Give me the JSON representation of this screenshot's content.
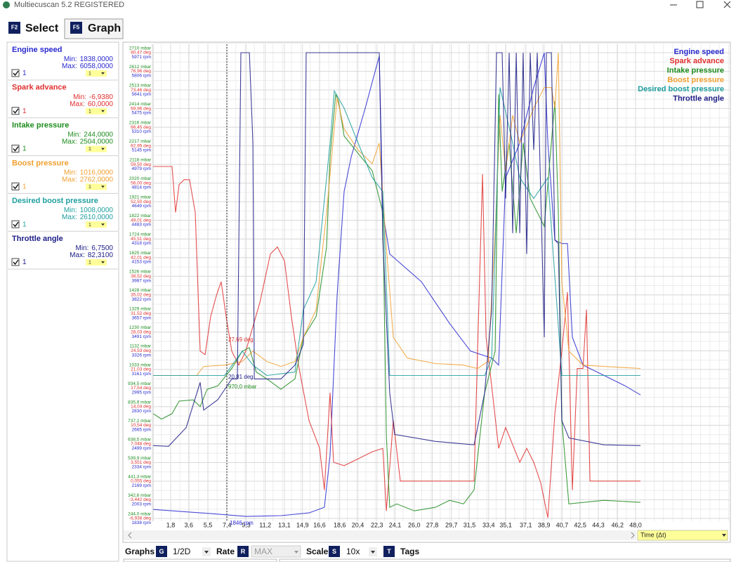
{
  "window": {
    "title": "Multiecuscan 5.2 REGISTERED"
  },
  "tabs": [
    {
      "key": "F2",
      "label": "Select"
    },
    {
      "key": "F5",
      "label": "Graph"
    }
  ],
  "captions": {
    "min": "Min:",
    "max": "Max:"
  },
  "channels": [
    {
      "name": "Engine speed",
      "color": "#2a2ad0",
      "min": {
        "value": 1838,
        "label": "1838,0000"
      },
      "max": {
        "value": 6058,
        "label": "6058,0000"
      },
      "enabled": "1",
      "scale": "1",
      "axis": 2,
      "t": [
        0.06,
        5.78,
        9.27,
        12.76,
        15.55,
        17.08,
        17.64,
        18.34,
        19.04,
        19.74,
        21.13,
        22.53,
        22.88,
        23.57,
        26.72,
        29.51,
        31.6,
        33.7,
        34.39,
        35.09,
        36.49,
        37.88,
        38.93,
        39.28,
        39.98,
        40.67,
        41.23,
        41.72,
        42.77,
        44.86,
        46.95,
        48.49
      ],
      "values": [
        1918,
        1881,
        1856,
        1863,
        1887,
        1937,
        2399,
        3815,
        4739,
        5047,
        5478,
        5940,
        4554,
        4185,
        3938,
        3569,
        3323,
        3261,
        3199,
        4862,
        5170,
        5663,
        5971,
        5170,
        4308,
        4277,
        4277,
        3446,
        3199,
        3107,
        3015,
        2934
      ]
    },
    {
      "name": "Spark advance",
      "color": "#e03030",
      "min": {
        "value": -6.938,
        "label": "-6,9380"
      },
      "max": {
        "value": 60,
        "label": "60,0000"
      },
      "enabled": "1",
      "scale": "1",
      "axis": 1,
      "t": [
        0.06,
        1.94,
        2.29,
        2.64,
        3.13,
        3.68,
        4.24,
        4.73,
        5.22,
        5.78,
        6.34,
        6.82,
        7.31,
        7.87,
        8.57,
        9.27,
        10.66,
        11.71,
        12.41,
        13.11,
        13.8,
        14.5,
        15.55,
        16.6,
        17.08,
        17.64,
        17.99,
        19.04,
        20.43,
        21.83,
        22.88,
        23.23,
        23.92,
        24.62,
        31.95,
        32.3,
        32.79,
        33.14,
        33.7,
        34.39,
        35.09,
        36.49,
        37.18,
        37.88,
        38.58,
        39.28,
        39.98,
        40.67,
        41.23,
        41.72,
        42.21,
        42.77,
        43.12,
        43.47,
        48.49
      ],
      "values": [
        59.11,
        59.11,
        50.51,
        55.72,
        56.63,
        56.63,
        50.51,
        24.46,
        23.81,
        30.97,
        34.88,
        37.48,
        30.97,
        24.46,
        21.85,
        24.46,
        33.58,
        42.7,
        44.0,
        41.39,
        30.97,
        21.85,
        11.43,
        6.22,
        -1.6,
        16.64,
        3.61,
        2.96,
        4.26,
        5.57,
        6.22,
        -5.51,
        11.43,
        0.07,
        0.07,
        24.46,
        57.67,
        27.06,
        17.94,
        6.22,
        10.13,
        3.61,
        6.22,
        3.61,
        -0.29,
        -6.81,
        12.73,
        24.46,
        35.53,
        -1.6,
        21.2,
        21.2,
        32.27,
        0.07,
        0.07
      ]
    },
    {
      "name": "Intake pressure",
      "color": "#1e8c1e",
      "min": {
        "value": 244,
        "label": "244,0000"
      },
      "max": {
        "value": 2504,
        "label": "2504,0000"
      },
      "enabled": "1",
      "scale": "1",
      "axis": 0,
      "t": [
        0.06,
        0.89,
        1.94,
        2.64,
        4.03,
        4.73,
        5.43,
        6.48,
        7.87,
        8.92,
        9.62,
        10.31,
        11.36,
        12.76,
        14.15,
        14.99,
        16.25,
        17.29,
        17.64,
        18.2,
        18.48,
        19.04,
        20.43,
        21.83,
        22.88,
        23.23,
        23.57,
        24.27,
        26.02,
        28.11,
        29.51,
        30.9,
        31.95,
        33.0,
        34.04,
        34.39,
        34.74,
        35.44,
        36.14,
        36.83,
        37.53,
        38.23,
        38.93,
        39.98,
        40.32,
        40.67,
        41.37,
        44.86,
        48.49
      ],
      "values": [
        799,
        770,
        799,
        865,
        872,
        836,
        928,
        946,
        1038,
        1130,
        1148,
        1019,
        983,
        928,
        983,
        1203,
        1313,
        1681,
        2159,
        2490,
        2453,
        2269,
        2177,
        2085,
        1865,
        689,
        303,
        321,
        284,
        303,
        340,
        321,
        395,
        909,
        1130,
        2490,
        1975,
        2232,
        1754,
        2232,
        1938,
        1865,
        1791,
        2453,
        1865,
        763,
        321,
        340,
        329
      ]
    },
    {
      "name": "Boost pressure",
      "color": "#f0a030",
      "min": {
        "value": 1016,
        "label": "1016,0000"
      },
      "max": {
        "value": 2762,
        "label": "2762,0000"
      },
      "enabled": "1",
      "scale": "1",
      "axis": 0,
      "t": [
        0.06,
        4.38,
        5.08,
        7.17,
        8.92,
        9.97,
        11.36,
        12.76,
        14.15,
        14.99,
        16.25,
        17.29,
        18.34,
        19.04,
        20.43,
        21.83,
        22.53,
        23.23,
        23.92,
        25.32,
        28.11,
        30.9,
        32.3,
        33.35,
        34.04,
        34.53,
        35.09,
        35.79,
        36.49,
        37.88,
        38.93,
        39.63,
        39.98,
        40.32,
        40.67,
        41.37,
        42.77,
        44.86,
        48.49
      ],
      "values": [
        1001,
        1001,
        1049,
        1056,
        1075,
        1130,
        1075,
        1049,
        1075,
        1203,
        1350,
        1865,
        2471,
        2306,
        2195,
        2122,
        2232,
        1681,
        1203,
        1093,
        1064,
        1056,
        1038,
        1075,
        1754,
        2379,
        2085,
        2379,
        2232,
        2416,
        2526,
        2526,
        2416,
        2710,
        1497,
        1130,
        1056,
        1049,
        1038
      ]
    },
    {
      "name": "Desired boost pressure",
      "color": "#1f9e9e",
      "min": {
        "value": 1008,
        "label": "1008,0000"
      },
      "max": {
        "value": 2610,
        "label": "2610,0000"
      },
      "enabled": "1",
      "scale": "1",
      "axis": 0,
      "t": [
        0.06,
        7.17,
        8.92,
        9.97,
        11.36,
        14.15,
        14.99,
        16.25,
        17.64,
        18.06,
        19.04,
        20.43,
        21.83,
        22.88,
        23.57,
        33.0,
        33.7,
        34.53,
        35.79,
        36.49,
        37.88,
        39.28,
        40.67,
        48.49
      ],
      "values": [
        1001,
        1001,
        1130,
        1056,
        1001,
        1019,
        1350,
        1497,
        2232,
        2508,
        2416,
        2232,
        2048,
        1975,
        1001,
        1001,
        1093,
        2526,
        2232,
        2048,
        1938,
        2048,
        1001,
        1001
      ]
    },
    {
      "name": "Throttle angle",
      "color": "#1c1c86",
      "min": {
        "value": 6.75,
        "label": "6,7500"
      },
      "max": {
        "value": 82.31,
        "label": "82,3100"
      },
      "enabled": "1",
      "scale": "1",
      "axis": null,
      "t": [
        0.06,
        1.59,
        3.34,
        4.73,
        5.08,
        6.48,
        7.87,
        8.43,
        8.78,
        9.62,
        9.97,
        10.11,
        12.76,
        14.15,
        14.99,
        15.27,
        22.53,
        22.88,
        23.57,
        24.06,
        28.11,
        31.95,
        33.0,
        33.7,
        34.18,
        34.74,
        35.09,
        35.44,
        35.79,
        36.14,
        36.49,
        36.83,
        37.18,
        37.53,
        37.88,
        38.23,
        38.93,
        39.14,
        39.63,
        39.98,
        40.32,
        40.67,
        41.37,
        44.86,
        48.49
      ],
      "values": [
        18.57,
        18.46,
        21.5,
        28.82,
        24.32,
        26.01,
        29.38,
        29.38,
        82.31,
        82.31,
        67.67,
        29.38,
        29.38,
        31.64,
        35.02,
        82.31,
        82.31,
        51.91,
        27.13,
        20.38,
        19.25,
        18.69,
        27.13,
        40.65,
        82.31,
        82.31,
        58.66,
        82.31,
        53.03,
        82.31,
        53.03,
        82.31,
        49.65,
        82.31,
        66.55,
        82.31,
        36.14,
        82.31,
        82.31,
        51.91,
        51.34,
        22.63,
        19.81,
        18.69,
        18.57
      ]
    }
  ],
  "y_rows": [
    [
      {
        "value": 2710,
        "label": "2710 mbar"
      },
      {
        "value": 80.47,
        "label": "80,47 deg"
      },
      {
        "value": 5971,
        "label": "5971 rpm"
      }
    ],
    [
      {
        "value": 2612,
        "label": "2612 mbar"
      },
      {
        "value": 76.96,
        "label": "76,96 deg"
      },
      {
        "value": 5806,
        "label": "5806 rpm"
      }
    ],
    [
      {
        "value": 2513,
        "label": "2513 mbar"
      },
      {
        "value": 73.46,
        "label": "73,46 deg"
      },
      {
        "value": 5641,
        "label": "5641 rpm"
      }
    ],
    [
      {
        "value": 2414,
        "label": "2414 mbar"
      },
      {
        "value": 69.96,
        "label": "69,96 deg"
      },
      {
        "value": 5475,
        "label": "5475 rpm"
      }
    ],
    [
      {
        "value": 2316,
        "label": "2316 mbar"
      },
      {
        "value": 66.45,
        "label": "66,45 deg"
      },
      {
        "value": 5310,
        "label": "5310 rpm"
      }
    ],
    [
      {
        "value": 2217,
        "label": "2217 mbar"
      },
      {
        "value": 62.95,
        "label": "62,95 deg"
      },
      {
        "value": 5145,
        "label": "5145 rpm"
      }
    ],
    [
      {
        "value": 2118,
        "label": "2118 mbar"
      },
      {
        "value": 59.5,
        "label": "59,50 deg"
      },
      {
        "value": 4979,
        "label": "4979 rpm"
      }
    ],
    [
      {
        "value": 2020,
        "label": "2020 mbar"
      },
      {
        "value": 56,
        "label": "56,00 deg"
      },
      {
        "value": 4814,
        "label": "4814 rpm"
      }
    ],
    [
      {
        "value": 1921,
        "label": "1921 mbar"
      },
      {
        "value": 52.5,
        "label": "52,50 deg"
      },
      {
        "value": 4649,
        "label": "4649 rpm"
      }
    ],
    [
      {
        "value": 1822,
        "label": "1822 mbar"
      },
      {
        "value": 49.01,
        "label": "49,01 deg"
      },
      {
        "value": 4483,
        "label": "4483 rpm"
      }
    ],
    [
      {
        "value": 1724,
        "label": "1724 mbar"
      },
      {
        "value": 45.51,
        "label": "45,51 deg"
      },
      {
        "value": 4318,
        "label": "4318 rpm"
      }
    ],
    [
      {
        "value": 1625,
        "label": "1625 mbar"
      },
      {
        "value": 42.01,
        "label": "42,01 deg"
      },
      {
        "value": 4153,
        "label": "4153 rpm"
      }
    ],
    [
      {
        "value": 1526,
        "label": "1526 mbar"
      },
      {
        "value": 38.52,
        "label": "38,52 deg"
      },
      {
        "value": 3987,
        "label": "3987 rpm"
      }
    ],
    [
      {
        "value": 1428,
        "label": "1428 mbar"
      },
      {
        "value": 35.02,
        "label": "35,02 deg"
      },
      {
        "value": 3822,
        "label": "3822 rpm"
      }
    ],
    [
      {
        "value": 1329,
        "label": "1329 mbar"
      },
      {
        "value": 31.52,
        "label": "31,52 deg"
      },
      {
        "value": 3657,
        "label": "3657 rpm"
      }
    ],
    [
      {
        "value": 1230,
        "label": "1230 mbar"
      },
      {
        "value": 28.03,
        "label": "28,03 deg"
      },
      {
        "value": 3491,
        "label": "3491 rpm"
      }
    ],
    [
      {
        "value": 1132,
        "label": "1132 mbar"
      },
      {
        "value": 24.53,
        "label": "24,53 deg"
      },
      {
        "value": 3326,
        "label": "3326 rpm"
      }
    ],
    [
      {
        "value": 1033,
        "label": "1033 mbar"
      },
      {
        "value": 21.03,
        "label": "21,03 deg"
      },
      {
        "value": 3161,
        "label": "3161 rpm"
      }
    ],
    [
      {
        "value": 934.5,
        "label": "934,5 mbar"
      },
      {
        "value": 17.54,
        "label": "17,54 deg"
      },
      {
        "value": 2995,
        "label": "2995 rpm"
      }
    ],
    [
      {
        "value": 835.9,
        "label": "835,9 mbar"
      },
      {
        "value": 14.04,
        "label": "14,04 deg"
      },
      {
        "value": 2830,
        "label": "2830 rpm"
      }
    ],
    [
      {
        "value": 737.2,
        "label": "737,2 mbar"
      },
      {
        "value": 10.54,
        "label": "10,54 deg"
      },
      {
        "value": 2665,
        "label": "2665 rpm"
      }
    ],
    [
      {
        "value": 638.5,
        "label": "638,5 mbar"
      },
      {
        "value": 7.048,
        "label": "7,048 deg"
      },
      {
        "value": 2499,
        "label": "2499 rpm"
      }
    ],
    [
      {
        "value": 539.9,
        "label": "539,9 mbar"
      },
      {
        "value": 3.551,
        "label": "3,551 deg"
      },
      {
        "value": 2334,
        "label": "2334 rpm"
      }
    ],
    [
      {
        "value": 441.3,
        "label": "441,3 mbar"
      },
      {
        "value": 0.055,
        "label": "0,055 deg"
      },
      {
        "value": 2169,
        "label": "2169 rpm"
      }
    ],
    [
      {
        "value": 342.6,
        "label": "342,6 mbar"
      },
      {
        "value": -3.442,
        "label": "-3,442 deg"
      },
      {
        "value": 2003,
        "label": "2003 rpm"
      }
    ],
    [
      {
        "value": 244,
        "label": "244,0 mbar"
      },
      {
        "value": -6.938,
        "label": "-6,938 deg"
      },
      {
        "value": 1838,
        "label": "1838 rpm"
      }
    ]
  ],
  "x_ticks": [
    {
      "value": 1.8,
      "label": "1,8"
    },
    {
      "value": 3.6,
      "label": "3,6"
    },
    {
      "value": 5.5,
      "label": "5,5"
    },
    {
      "value": 7.4,
      "label": "7,4"
    },
    {
      "value": 9.3,
      "label": "9,3"
    },
    {
      "value": 11.2,
      "label": "11,2"
    },
    {
      "value": 13.1,
      "label": "13,1"
    },
    {
      "value": 14.9,
      "label": "14,9"
    },
    {
      "value": 16.6,
      "label": "16,6"
    },
    {
      "value": 18.6,
      "label": "18,6"
    },
    {
      "value": 20.4,
      "label": "20,4"
    },
    {
      "value": 22.3,
      "label": "22,3"
    },
    {
      "value": 24.1,
      "label": "24,1"
    },
    {
      "value": 26.0,
      "label": "26,0"
    },
    {
      "value": 27.8,
      "label": "27,8"
    },
    {
      "value": 29.7,
      "label": "29,7"
    },
    {
      "value": 31.5,
      "label": "31,5"
    },
    {
      "value": 33.4,
      "label": "33,4"
    },
    {
      "value": 35.1,
      "label": "35,1"
    },
    {
      "value": 37.1,
      "label": "37,1"
    },
    {
      "value": 38.9,
      "label": "38,9"
    },
    {
      "value": 40.7,
      "label": "40,7"
    },
    {
      "value": 42.5,
      "label": "42,5"
    },
    {
      "value": 44.3,
      "label": "44,3"
    },
    {
      "value": 46.2,
      "label": "46,2"
    },
    {
      "value": 48.0,
      "label": "48,0"
    }
  ],
  "cursor_readouts": [
    {
      "text": "27,69 deg",
      "color": "#e03030"
    },
    {
      "text": "20,81 deg",
      "color": "#1c1c86"
    },
    {
      "text": "970,0 mbar",
      "color": "#1e8c1e"
    },
    {
      "text": "1846 rpm",
      "color": "#2a2ad0"
    }
  ],
  "time_axis_label": "Time (Δt)",
  "toolbar": {
    "graphs": "Graphs",
    "graphs_key": "G",
    "graphs_value": "1/2D",
    "rate": "Rate",
    "rate_key": "R",
    "rate_value": "MAX",
    "scale": "Scale",
    "scale_key": "S",
    "scale_value": "10x",
    "tags_key": "T",
    "tags": "Tags"
  }
}
